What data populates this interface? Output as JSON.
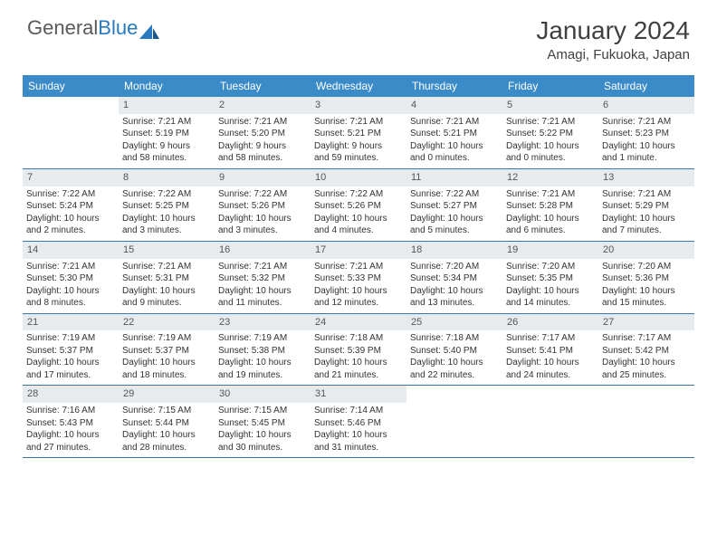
{
  "logo": {
    "part1": "General",
    "part2": "Blue"
  },
  "title": "January 2024",
  "location": "Amagi, Fukuoka, Japan",
  "colors": {
    "header_bg": "#3b8bc9",
    "header_text": "#ffffff",
    "daynum_bg": "#e8ebed",
    "week_border": "#3b78a8",
    "text": "#333333",
    "logo_gray": "#5a5a5a",
    "logo_blue": "#2879c0"
  },
  "day_names": [
    "Sunday",
    "Monday",
    "Tuesday",
    "Wednesday",
    "Thursday",
    "Friday",
    "Saturday"
  ],
  "weeks": [
    [
      {
        "num": "",
        "lines": []
      },
      {
        "num": "1",
        "lines": [
          "Sunrise: 7:21 AM",
          "Sunset: 5:19 PM",
          "Daylight: 9 hours",
          "and 58 minutes."
        ]
      },
      {
        "num": "2",
        "lines": [
          "Sunrise: 7:21 AM",
          "Sunset: 5:20 PM",
          "Daylight: 9 hours",
          "and 58 minutes."
        ]
      },
      {
        "num": "3",
        "lines": [
          "Sunrise: 7:21 AM",
          "Sunset: 5:21 PM",
          "Daylight: 9 hours",
          "and 59 minutes."
        ]
      },
      {
        "num": "4",
        "lines": [
          "Sunrise: 7:21 AM",
          "Sunset: 5:21 PM",
          "Daylight: 10 hours",
          "and 0 minutes."
        ]
      },
      {
        "num": "5",
        "lines": [
          "Sunrise: 7:21 AM",
          "Sunset: 5:22 PM",
          "Daylight: 10 hours",
          "and 0 minutes."
        ]
      },
      {
        "num": "6",
        "lines": [
          "Sunrise: 7:21 AM",
          "Sunset: 5:23 PM",
          "Daylight: 10 hours",
          "and 1 minute."
        ]
      }
    ],
    [
      {
        "num": "7",
        "lines": [
          "Sunrise: 7:22 AM",
          "Sunset: 5:24 PM",
          "Daylight: 10 hours",
          "and 2 minutes."
        ]
      },
      {
        "num": "8",
        "lines": [
          "Sunrise: 7:22 AM",
          "Sunset: 5:25 PM",
          "Daylight: 10 hours",
          "and 3 minutes."
        ]
      },
      {
        "num": "9",
        "lines": [
          "Sunrise: 7:22 AM",
          "Sunset: 5:26 PM",
          "Daylight: 10 hours",
          "and 3 minutes."
        ]
      },
      {
        "num": "10",
        "lines": [
          "Sunrise: 7:22 AM",
          "Sunset: 5:26 PM",
          "Daylight: 10 hours",
          "and 4 minutes."
        ]
      },
      {
        "num": "11",
        "lines": [
          "Sunrise: 7:22 AM",
          "Sunset: 5:27 PM",
          "Daylight: 10 hours",
          "and 5 minutes."
        ]
      },
      {
        "num": "12",
        "lines": [
          "Sunrise: 7:21 AM",
          "Sunset: 5:28 PM",
          "Daylight: 10 hours",
          "and 6 minutes."
        ]
      },
      {
        "num": "13",
        "lines": [
          "Sunrise: 7:21 AM",
          "Sunset: 5:29 PM",
          "Daylight: 10 hours",
          "and 7 minutes."
        ]
      }
    ],
    [
      {
        "num": "14",
        "lines": [
          "Sunrise: 7:21 AM",
          "Sunset: 5:30 PM",
          "Daylight: 10 hours",
          "and 8 minutes."
        ]
      },
      {
        "num": "15",
        "lines": [
          "Sunrise: 7:21 AM",
          "Sunset: 5:31 PM",
          "Daylight: 10 hours",
          "and 9 minutes."
        ]
      },
      {
        "num": "16",
        "lines": [
          "Sunrise: 7:21 AM",
          "Sunset: 5:32 PM",
          "Daylight: 10 hours",
          "and 11 minutes."
        ]
      },
      {
        "num": "17",
        "lines": [
          "Sunrise: 7:21 AM",
          "Sunset: 5:33 PM",
          "Daylight: 10 hours",
          "and 12 minutes."
        ]
      },
      {
        "num": "18",
        "lines": [
          "Sunrise: 7:20 AM",
          "Sunset: 5:34 PM",
          "Daylight: 10 hours",
          "and 13 minutes."
        ]
      },
      {
        "num": "19",
        "lines": [
          "Sunrise: 7:20 AM",
          "Sunset: 5:35 PM",
          "Daylight: 10 hours",
          "and 14 minutes."
        ]
      },
      {
        "num": "20",
        "lines": [
          "Sunrise: 7:20 AM",
          "Sunset: 5:36 PM",
          "Daylight: 10 hours",
          "and 15 minutes."
        ]
      }
    ],
    [
      {
        "num": "21",
        "lines": [
          "Sunrise: 7:19 AM",
          "Sunset: 5:37 PM",
          "Daylight: 10 hours",
          "and 17 minutes."
        ]
      },
      {
        "num": "22",
        "lines": [
          "Sunrise: 7:19 AM",
          "Sunset: 5:37 PM",
          "Daylight: 10 hours",
          "and 18 minutes."
        ]
      },
      {
        "num": "23",
        "lines": [
          "Sunrise: 7:19 AM",
          "Sunset: 5:38 PM",
          "Daylight: 10 hours",
          "and 19 minutes."
        ]
      },
      {
        "num": "24",
        "lines": [
          "Sunrise: 7:18 AM",
          "Sunset: 5:39 PM",
          "Daylight: 10 hours",
          "and 21 minutes."
        ]
      },
      {
        "num": "25",
        "lines": [
          "Sunrise: 7:18 AM",
          "Sunset: 5:40 PM",
          "Daylight: 10 hours",
          "and 22 minutes."
        ]
      },
      {
        "num": "26",
        "lines": [
          "Sunrise: 7:17 AM",
          "Sunset: 5:41 PM",
          "Daylight: 10 hours",
          "and 24 minutes."
        ]
      },
      {
        "num": "27",
        "lines": [
          "Sunrise: 7:17 AM",
          "Sunset: 5:42 PM",
          "Daylight: 10 hours",
          "and 25 minutes."
        ]
      }
    ],
    [
      {
        "num": "28",
        "lines": [
          "Sunrise: 7:16 AM",
          "Sunset: 5:43 PM",
          "Daylight: 10 hours",
          "and 27 minutes."
        ]
      },
      {
        "num": "29",
        "lines": [
          "Sunrise: 7:15 AM",
          "Sunset: 5:44 PM",
          "Daylight: 10 hours",
          "and 28 minutes."
        ]
      },
      {
        "num": "30",
        "lines": [
          "Sunrise: 7:15 AM",
          "Sunset: 5:45 PM",
          "Daylight: 10 hours",
          "and 30 minutes."
        ]
      },
      {
        "num": "31",
        "lines": [
          "Sunrise: 7:14 AM",
          "Sunset: 5:46 PM",
          "Daylight: 10 hours",
          "and 31 minutes."
        ]
      },
      {
        "num": "",
        "lines": []
      },
      {
        "num": "",
        "lines": []
      },
      {
        "num": "",
        "lines": []
      }
    ]
  ]
}
